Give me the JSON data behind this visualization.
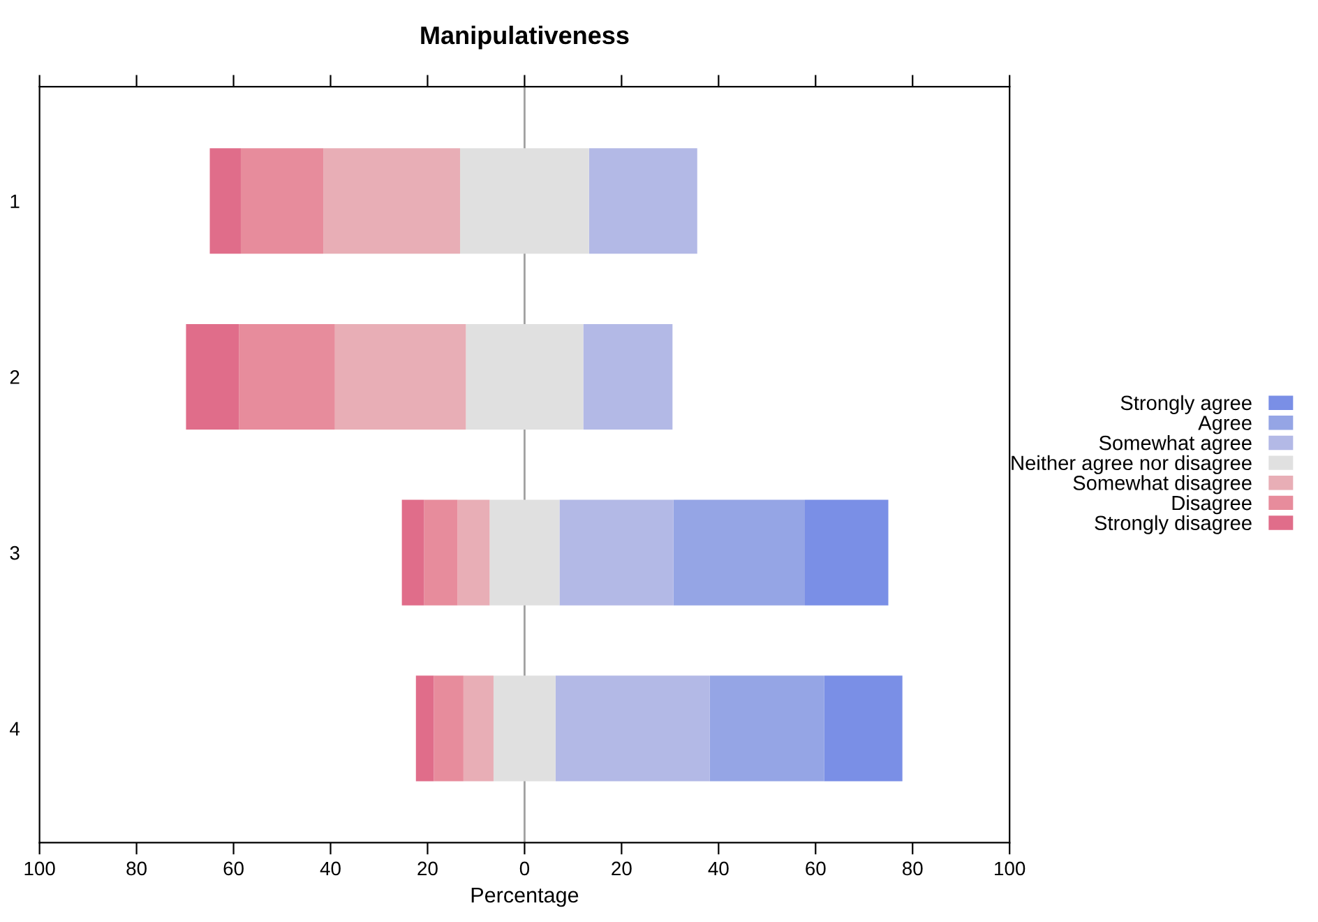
{
  "chart_data": {
    "type": "bar",
    "orientation": "horizontal",
    "title": "Manipulativeness",
    "xlabel": "Percentage",
    "categories": [
      "1",
      "2",
      "3",
      "4"
    ],
    "series": [
      {
        "name": "Strongly agree",
        "color": "#7a8fe6",
        "values": [
          null,
          null,
          17.2,
          16.1
        ],
        "base": [
          null,
          null,
          57.8,
          61.8
        ]
      },
      {
        "name": "Agree",
        "color": "#95a5e5",
        "values": [
          null,
          null,
          27.1,
          23.6
        ],
        "base": [
          null,
          null,
          30.7,
          38.2
        ]
      },
      {
        "name": "Somewhat agree",
        "color": "#b3b9e6",
        "values": [
          22.3,
          18.4,
          23.5,
          31.8
        ],
        "base": [
          13.3,
          12.1,
          7.2,
          6.4
        ]
      },
      {
        "name": "Neither agree nor disagree",
        "color": "#e0e0e0",
        "values": [
          26.6,
          24.2,
          14.4,
          12.8
        ],
        "base": [
          -13.3,
          -12.1,
          -7.2,
          -6.4
        ]
      },
      {
        "name": "Somewhat disagree",
        "color": "#e8aeb6",
        "values": [
          28.2,
          27.0,
          6.6,
          6.2
        ],
        "base": [
          -41.5,
          -39.1,
          -13.8,
          -12.6
        ]
      },
      {
        "name": "Disagree",
        "color": "#e78c9c",
        "values": [
          17.0,
          19.8,
          6.9,
          6.1
        ],
        "base": [
          -58.5,
          -58.9,
          -20.7,
          -18.7
        ]
      },
      {
        "name": "Strongly disagree",
        "color": "#e06d8a",
        "values": [
          6.4,
          10.9,
          4.6,
          3.7
        ],
        "base": [
          -64.9,
          -69.8,
          -25.3,
          -22.4
        ]
      }
    ],
    "xlim": [
      -100,
      100
    ],
    "xticks": [
      {
        "value": -100,
        "label": "100"
      },
      {
        "value": -80,
        "label": "80"
      },
      {
        "value": -60,
        "label": "60"
      },
      {
        "value": -40,
        "label": "40"
      },
      {
        "value": -20,
        "label": "20"
      },
      0,
      20,
      40,
      60,
      80,
      100
    ],
    "ref_lines": [
      {
        "axis": "x",
        "value": 0,
        "color": "#a0a0a0"
      }
    ],
    "legend": "right",
    "grid": false
  }
}
